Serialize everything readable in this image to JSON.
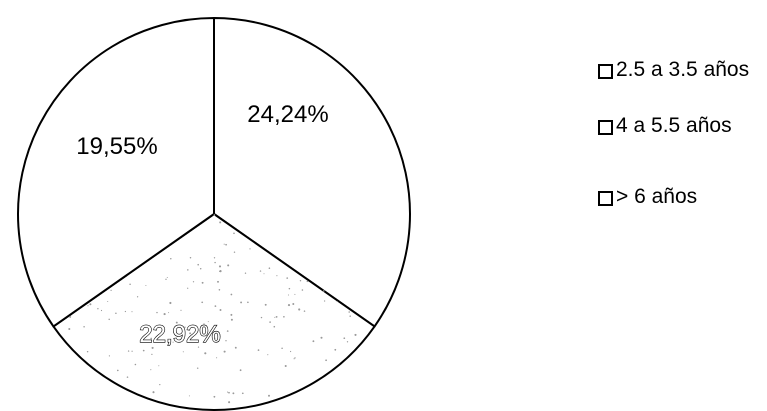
{
  "chart_data": {
    "type": "pie",
    "title": "",
    "slices": [
      {
        "label": "2.5 a 3.5 años",
        "value": 24.24,
        "display": "24,24%"
      },
      {
        "label": "4 a 5.5 años",
        "value": 22.92,
        "display": "22,92%"
      },
      {
        "label": "> 6 años",
        "value": 19.55,
        "display": "19,55%"
      }
    ],
    "legend": {
      "placement": "right",
      "entries": [
        "2.5 a 3.5 años",
        "4 a 5.5 años",
        "> 6 años"
      ]
    },
    "colors": {
      "background": "#ffffff",
      "slice_fill": "#ffffff",
      "stroke": "#000000",
      "stipple": "#9a9a9a"
    }
  }
}
